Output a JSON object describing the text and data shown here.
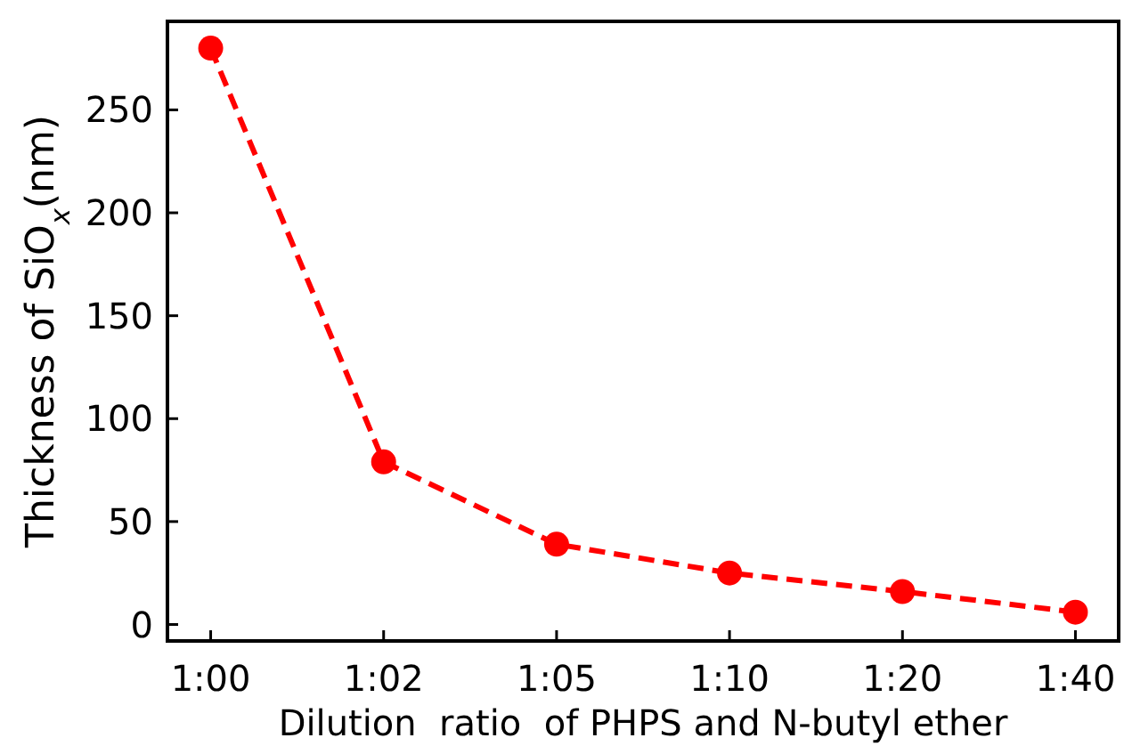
{
  "chart_data": {
    "type": "line",
    "xlabel": "Dilution  ratio  of PHPS and N-butyl ether",
    "ylabel": "Thickness of SiO$_{x}$(nm)",
    "categories": [
      "1:00",
      "1:02",
      "1:05",
      "1:10",
      "1:20",
      "1:40"
    ],
    "series": [
      {
        "color": "#ff0000",
        "values": [
          280,
          79,
          39,
          25,
          16,
          6
        ]
      }
    ],
    "ylim": [
      -8,
      293
    ],
    "yticks": [
      0,
      50,
      100,
      150,
      200,
      250
    ],
    "marker": "circle",
    "line_style": "dashed"
  }
}
